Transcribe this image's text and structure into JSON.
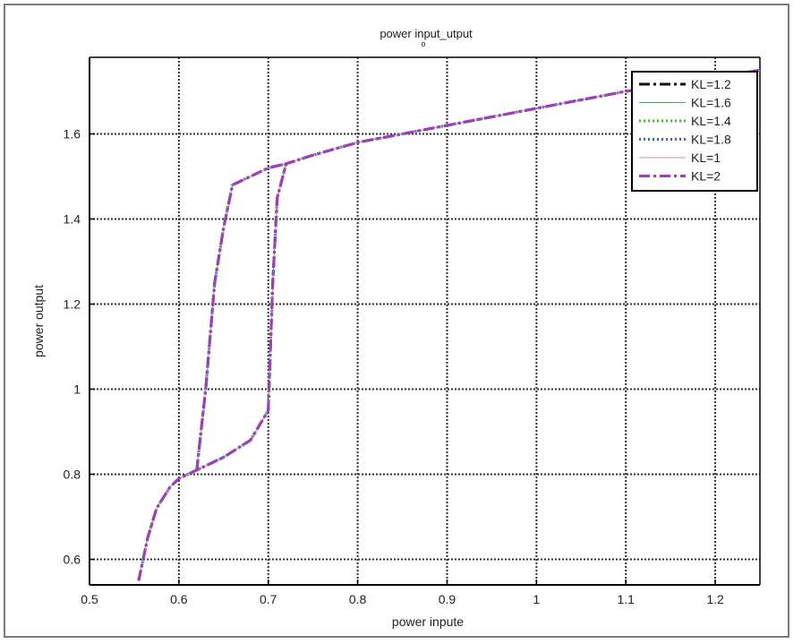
{
  "chart_data": {
    "type": "line",
    "title": "power input_utput",
    "title_subscript": "o",
    "xlabel": "power inpute",
    "ylabel": "power output",
    "xlim": [
      0.5,
      1.25
    ],
    "ylim": [
      0.54,
      1.78
    ],
    "x_ticks": [
      0.5,
      0.6,
      0.7,
      0.8,
      0.9,
      1,
      1.1,
      1.2
    ],
    "x_tick_labels": [
      "0.5",
      "0.6",
      "0.7",
      "0.8",
      "0.9",
      "1",
      "1.1",
      "1.2"
    ],
    "y_ticks": [
      0.6,
      0.8,
      1,
      1.2,
      1.4,
      1.6
    ],
    "y_tick_labels": [
      "0.6",
      "0.8",
      "1",
      "1.2",
      "1.4",
      "1.6"
    ],
    "grid": true,
    "legend_position": "top-right",
    "curve_points": {
      "x": [
        0.555,
        0.565,
        0.575,
        0.59,
        0.6,
        0.62,
        0.65,
        0.68,
        0.7,
        0.705,
        0.71,
        0.72,
        0.75,
        0.8,
        0.9,
        1.0,
        1.1,
        1.25
      ],
      "y": [
        0.55,
        0.65,
        0.72,
        0.77,
        0.79,
        0.81,
        0.84,
        0.88,
        0.95,
        1.25,
        1.45,
        1.53,
        1.55,
        1.58,
        1.62,
        1.66,
        1.7,
        1.75
      ]
    },
    "hysteresis_branch": {
      "x": [
        0.62,
        0.63,
        0.64,
        0.65,
        0.66,
        0.7,
        0.72
      ],
      "y": [
        0.81,
        1.0,
        1.25,
        1.38,
        1.48,
        1.52,
        1.53
      ]
    },
    "series": [
      {
        "name": "KL=1.2",
        "color": "#111111",
        "dash": "dashdot",
        "width": 3
      },
      {
        "name": "KL=1.6",
        "color": "#4fa36a",
        "dash": "solid",
        "width": 1
      },
      {
        "name": "KL=1.4",
        "color": "#36c41e",
        "dash": "dotted",
        "width": 3
      },
      {
        "name": "KL=1.8",
        "color": "#2f5fe0",
        "dash": "dotted",
        "width": 3
      },
      {
        "name": "KL=1",
        "color": "#e48a8a",
        "dash": "solid",
        "width": 1
      },
      {
        "name": "KL=2",
        "color": "#a33bbf",
        "dash": "dashdot",
        "width": 3
      }
    ]
  }
}
